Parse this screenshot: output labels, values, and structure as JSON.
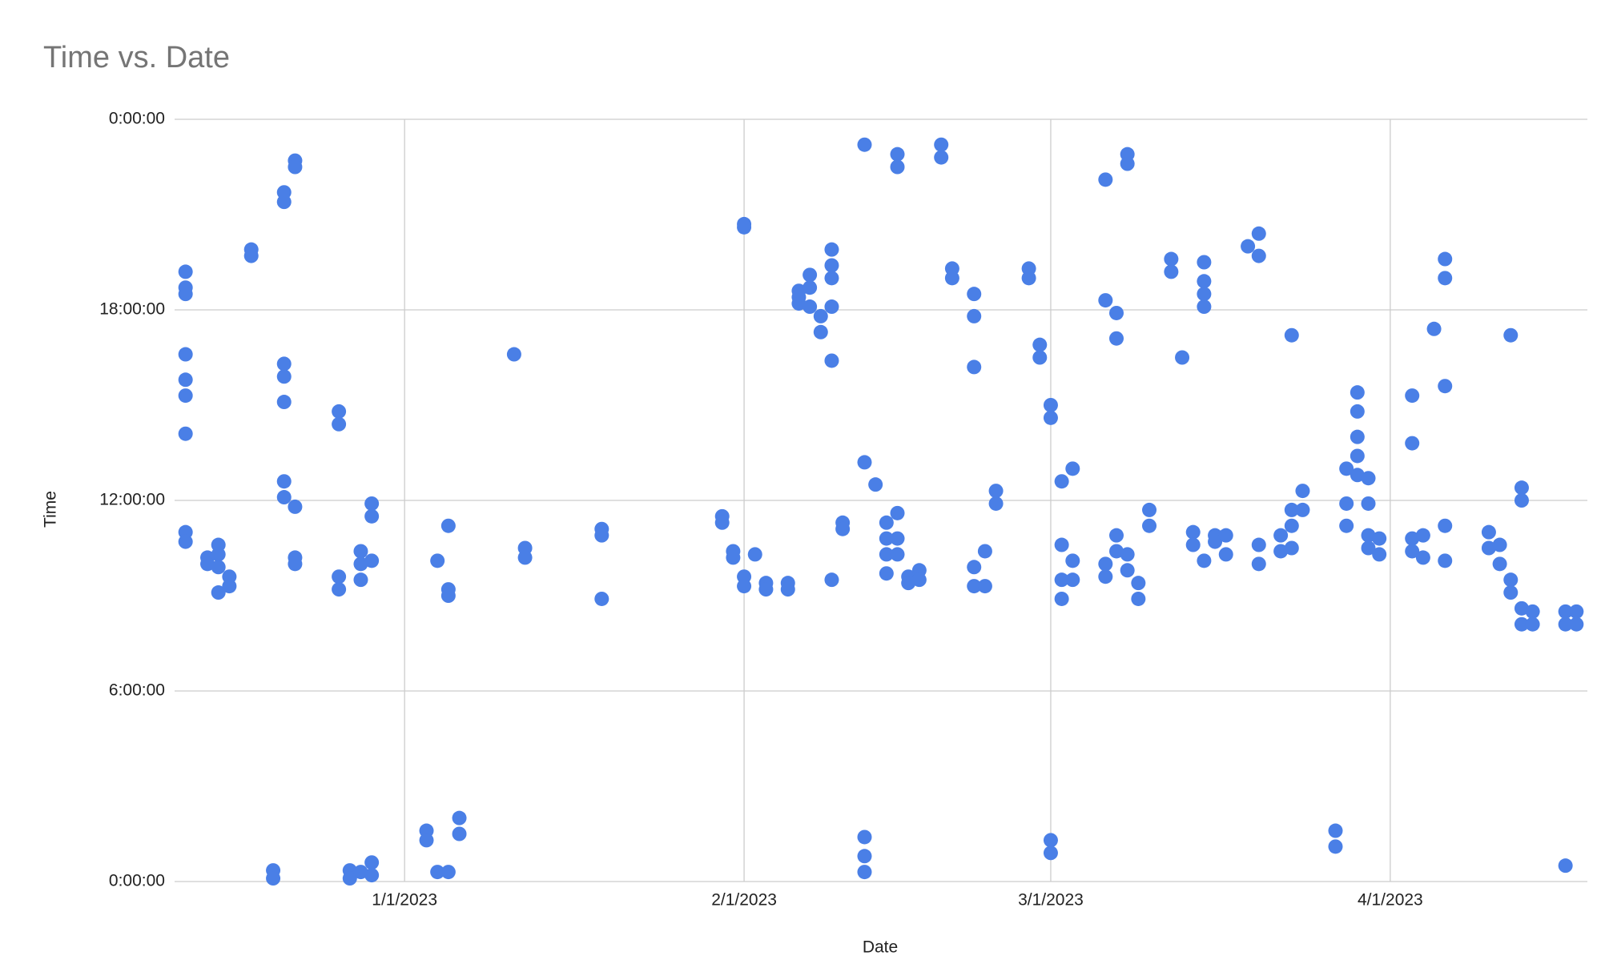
{
  "chart_data": {
    "type": "scatter",
    "title": "Time vs. Date",
    "x_label": "Date",
    "y_label": "Time",
    "color": "#4a7fe6",
    "grid": true,
    "xlim": [
      "12/11/2022",
      "4/19/2023"
    ],
    "xticks": [
      "1/1/2023",
      "2/1/2023",
      "3/1/2023",
      "4/1/2023"
    ],
    "ylim": [
      0,
      24
    ],
    "yticks": [
      {
        "value": 0,
        "label": "0:00:00"
      },
      {
        "value": 6,
        "label": "6:00:00"
      },
      {
        "value": 12,
        "label": "12:00:00"
      },
      {
        "value": 18,
        "label": "18:00:00"
      },
      {
        "value": 24,
        "label": "0:00:00"
      }
    ],
    "x": [
      "12/12/2022",
      "12/12/2022",
      "12/12/2022",
      "12/12/2022",
      "12/12/2022",
      "12/12/2022",
      "12/12/2022",
      "12/12/2022",
      "12/12/2022",
      "12/14/2022",
      "12/14/2022",
      "12/15/2022",
      "12/15/2022",
      "12/15/2022",
      "12/15/2022",
      "12/16/2022",
      "12/16/2022",
      "12/18/2022",
      "12/18/2022",
      "12/20/2022",
      "12/20/2022",
      "12/21/2022",
      "12/21/2022",
      "12/21/2022",
      "12/21/2022",
      "12/21/2022",
      "12/21/2022",
      "12/21/2022",
      "12/22/2022",
      "12/22/2022",
      "12/22/2022",
      "12/22/2022",
      "12/22/2022",
      "12/26/2022",
      "12/26/2022",
      "12/26/2022",
      "12/26/2022",
      "12/27/2022",
      "12/27/2022",
      "12/28/2022",
      "12/28/2022",
      "12/28/2022",
      "12/28/2022",
      "12/29/2022",
      "12/29/2022",
      "12/29/2022",
      "12/29/2022",
      "12/29/2022",
      "1/3/2023",
      "1/3/2023",
      "1/4/2023",
      "1/4/2023",
      "1/5/2023",
      "1/5/2023",
      "1/5/2023",
      "1/5/2023",
      "1/6/2023",
      "1/6/2023",
      "1/11/2023",
      "1/12/2023",
      "1/12/2023",
      "1/19/2023",
      "1/19/2023",
      "1/19/2023",
      "1/30/2023",
      "1/30/2023",
      "1/31/2023",
      "1/31/2023",
      "2/1/2023",
      "2/1/2023",
      "2/1/2023",
      "2/1/2023",
      "2/2/2023",
      "2/3/2023",
      "2/3/2023",
      "2/5/2023",
      "2/5/2023",
      "2/6/2023",
      "2/6/2023",
      "2/6/2023",
      "2/7/2023",
      "2/7/2023",
      "2/7/2023",
      "2/8/2023",
      "2/8/2023",
      "2/9/2023",
      "2/9/2023",
      "2/9/2023",
      "2/9/2023",
      "2/9/2023",
      "2/9/2023",
      "2/10/2023",
      "2/10/2023",
      "2/12/2023",
      "2/12/2023",
      "2/12/2023",
      "2/12/2023",
      "2/12/2023",
      "2/13/2023",
      "2/14/2023",
      "2/14/2023",
      "2/14/2023",
      "2/14/2023",
      "2/15/2023",
      "2/15/2023",
      "2/15/2023",
      "2/15/2023",
      "2/15/2023",
      "2/16/2023",
      "2/16/2023",
      "2/17/2023",
      "2/17/2023",
      "2/19/2023",
      "2/19/2023",
      "2/20/2023",
      "2/20/2023",
      "2/22/2023",
      "2/22/2023",
      "2/22/2023",
      "2/22/2023",
      "2/22/2023",
      "2/23/2023",
      "2/23/2023",
      "2/24/2023",
      "2/24/2023",
      "2/27/2023",
      "2/27/2023",
      "2/28/2023",
      "2/28/2023",
      "3/1/2023",
      "3/1/2023",
      "3/1/2023",
      "3/1/2023",
      "3/2/2023",
      "3/2/2023",
      "3/2/2023",
      "3/2/2023",
      "3/3/2023",
      "3/3/2023",
      "3/3/2023",
      "3/6/2023",
      "3/6/2023",
      "3/6/2023",
      "3/6/2023",
      "3/7/2023",
      "3/7/2023",
      "3/7/2023",
      "3/7/2023",
      "3/8/2023",
      "3/8/2023",
      "3/8/2023",
      "3/8/2023",
      "3/9/2023",
      "3/9/2023",
      "3/10/2023",
      "3/10/2023",
      "3/12/2023",
      "3/12/2023",
      "3/13/2023",
      "3/14/2023",
      "3/14/2023",
      "3/15/2023",
      "3/15/2023",
      "3/15/2023",
      "3/15/2023",
      "3/15/2023",
      "3/16/2023",
      "3/16/2023",
      "3/17/2023",
      "3/17/2023",
      "3/19/2023",
      "3/20/2023",
      "3/20/2023",
      "3/20/2023",
      "3/20/2023",
      "3/22/2023",
      "3/22/2023",
      "3/23/2023",
      "3/23/2023",
      "3/23/2023",
      "3/23/2023",
      "3/24/2023",
      "3/24/2023",
      "3/27/2023",
      "3/27/2023",
      "3/28/2023",
      "3/28/2023",
      "3/28/2023",
      "3/29/2023",
      "3/29/2023",
      "3/29/2023",
      "3/29/2023",
      "3/29/2023",
      "3/30/2023",
      "3/30/2023",
      "3/30/2023",
      "3/30/2023",
      "3/31/2023",
      "3/31/2023",
      "4/3/2023",
      "4/3/2023",
      "4/3/2023",
      "4/3/2023",
      "4/4/2023",
      "4/4/2023",
      "4/5/2023",
      "4/6/2023",
      "4/6/2023",
      "4/6/2023",
      "4/6/2023",
      "4/6/2023",
      "4/10/2023",
      "4/10/2023",
      "4/11/2023",
      "4/11/2023",
      "4/12/2023",
      "4/12/2023",
      "4/12/2023",
      "4/13/2023",
      "4/13/2023",
      "4/13/2023",
      "4/13/2023",
      "4/14/2023",
      "4/14/2023",
      "4/17/2023",
      "4/17/2023",
      "4/17/2023",
      "4/18/2023",
      "4/18/2023"
    ],
    "values": [
      19.2,
      18.7,
      18.5,
      16.6,
      15.8,
      15.3,
      14.1,
      11.0,
      10.7,
      10.2,
      10.0,
      10.6,
      10.3,
      9.9,
      9.1,
      9.6,
      9.3,
      19.9,
      19.7,
      0.35,
      0.1,
      21.7,
      21.4,
      16.3,
      15.9,
      15.1,
      12.6,
      12.1,
      22.7,
      22.5,
      11.8,
      10.2,
      10.0,
      14.8,
      14.4,
      9.6,
      9.2,
      0.35,
      0.1,
      10.4,
      10.0,
      9.5,
      0.3,
      11.9,
      11.5,
      10.1,
      0.6,
      0.2,
      1.6,
      1.3,
      10.1,
      0.3,
      11.2,
      9.2,
      9.0,
      0.3,
      2.0,
      1.5,
      16.6,
      10.5,
      10.2,
      11.1,
      10.9,
      8.9,
      11.5,
      11.3,
      10.4,
      10.2,
      20.7,
      20.6,
      9.6,
      9.3,
      10.3,
      9.4,
      9.2,
      9.4,
      9.2,
      18.6,
      18.4,
      18.2,
      19.1,
      18.7,
      18.1,
      17.8,
      17.3,
      19.9,
      19.4,
      19.0,
      18.1,
      16.4,
      9.5,
      11.3,
      11.1,
      23.2,
      13.2,
      1.4,
      0.8,
      0.3,
      12.5,
      11.3,
      10.8,
      10.3,
      9.7,
      22.9,
      22.5,
      11.6,
      10.8,
      10.3,
      9.6,
      9.4,
      9.8,
      9.5,
      23.2,
      22.8,
      19.3,
      19.0,
      18.5,
      17.8,
      16.2,
      9.9,
      9.3,
      10.4,
      9.3,
      12.3,
      11.9,
      19.3,
      19.0,
      16.9,
      16.5,
      15.0,
      14.6,
      1.3,
      0.9,
      12.6,
      10.6,
      9.5,
      8.9,
      13.0,
      10.1,
      9.5,
      22.1,
      18.3,
      10.0,
      9.6,
      17.9,
      17.1,
      10.9,
      10.4,
      22.9,
      22.6,
      10.3,
      9.8,
      9.4,
      8.9,
      11.7,
      11.2,
      19.6,
      19.2,
      16.5,
      11.0,
      10.6,
      19.5,
      18.9,
      18.5,
      18.1,
      10.1,
      10.9,
      10.7,
      10.9,
      10.3,
      20.0,
      20.4,
      19.7,
      10.6,
      10.0,
      10.9,
      10.4,
      17.2,
      11.7,
      11.2,
      10.5,
      12.3,
      11.7,
      1.6,
      1.1,
      13.0,
      11.9,
      11.2,
      15.4,
      14.8,
      14.0,
      13.4,
      12.8,
      12.7,
      11.9,
      10.9,
      10.5,
      10.8,
      10.3,
      15.3,
      13.8,
      10.8,
      10.4,
      10.9,
      10.2,
      17.4,
      19.6,
      19.0,
      15.6,
      11.2,
      10.1,
      11.0,
      10.5,
      10.6,
      10.0,
      17.2,
      9.5,
      9.1,
      12.4,
      12.0,
      8.6,
      8.1,
      8.5,
      8.1,
      0.5,
      8.5,
      8.1,
      8.5,
      8.1
    ]
  }
}
